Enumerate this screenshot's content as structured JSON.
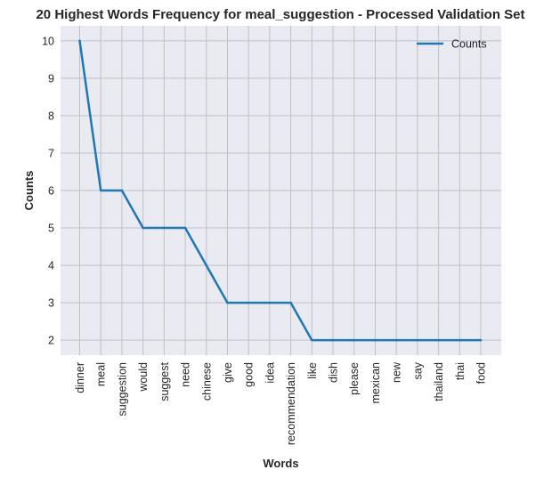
{
  "chart_data": {
    "type": "line",
    "title": "20 Highest Words Frequency for meal_suggestion - Processed Validation Set",
    "xlabel": "Words",
    "ylabel": "Counts",
    "categories": [
      "dinner",
      "meal",
      "suggestion",
      "would",
      "suggest",
      "need",
      "chinese",
      "give",
      "good",
      "idea",
      "recommendation",
      "like",
      "dish",
      "please",
      "mexican",
      "new",
      "say",
      "thailand",
      "thai",
      "food"
    ],
    "series": [
      {
        "name": "Counts",
        "values": [
          10,
          6,
          6,
          5,
          5,
          5,
          4,
          3,
          3,
          3,
          3,
          2,
          2,
          2,
          2,
          2,
          2,
          2,
          2,
          2
        ]
      }
    ],
    "yticks": [
      2,
      3,
      4,
      5,
      6,
      7,
      8,
      9,
      10
    ],
    "ylim": [
      1.6,
      10.4
    ],
    "grid": true,
    "legend_position": "top-right",
    "colors": {
      "line": "#1f77b4",
      "plot_bg": "#eaeaf2",
      "grid": "#c0c0c6"
    }
  }
}
